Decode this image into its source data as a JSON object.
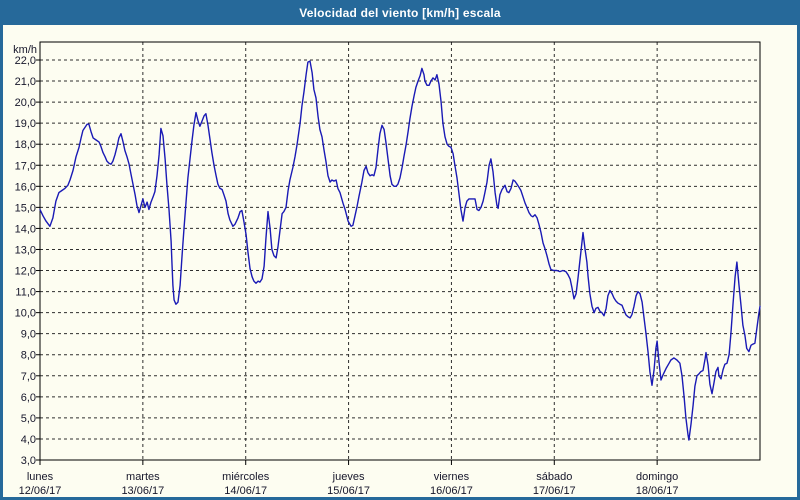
{
  "window": {
    "title": "Velocidad del viento [km/h] escala"
  },
  "colors": {
    "title_bar_bg": "#26699a",
    "title_text": "#ffffff",
    "frame": "#26699a",
    "page_bg": "#fdfdf1",
    "plot_border": "#000000",
    "grid": "#2e2e2e",
    "tick": "#000000",
    "axis_text": "#16162a",
    "line": "#1a1ab5"
  },
  "chart_data": {
    "type": "line",
    "title": "Velocidad del viento [km/h] escala",
    "ylabel": "km/h",
    "unit_label": "km/h",
    "ylim": [
      3,
      22
    ],
    "ytick_values": [
      3,
      4,
      5,
      6,
      7,
      8,
      9,
      10,
      11,
      12,
      13,
      14,
      15,
      16,
      17,
      18,
      19,
      20,
      21,
      22
    ],
    "ytick_labels": [
      "3,0",
      "4,0",
      "5,0",
      "6,0",
      "7,0",
      "8,0",
      "9,0",
      "10,0",
      "11,0",
      "12,0",
      "13,0",
      "14,0",
      "15,0",
      "16,0",
      "17,0",
      "18,0",
      "19,0",
      "20,0",
      "21,0",
      "22,0"
    ],
    "x_range_hours": [
      0,
      168
    ],
    "grid": "dashed",
    "legend": "none",
    "xticks": [
      {
        "hour": 0,
        "day": "lunes",
        "date": "12/06/17"
      },
      {
        "hour": 24,
        "day": "martes",
        "date": "13/06/17"
      },
      {
        "hour": 48,
        "day": "miércoles",
        "date": "14/06/17"
      },
      {
        "hour": 72,
        "day": "jueves",
        "date": "15/06/17"
      },
      {
        "hour": 96,
        "day": "viernes",
        "date": "16/06/17"
      },
      {
        "hour": 120,
        "day": "sábado",
        "date": "17/06/17"
      },
      {
        "hour": 144,
        "day": "domingo",
        "date": "18/06/17"
      }
    ],
    "series_name": "Velocidad del viento",
    "points_h_v": [
      [
        0,
        14.9
      ],
      [
        0.7,
        14.6
      ],
      [
        1.4,
        14.35
      ],
      [
        2.3,
        14.1
      ],
      [
        3,
        14.5
      ],
      [
        3.7,
        15.3
      ],
      [
        4.4,
        15.7
      ],
      [
        5.1,
        15.8
      ],
      [
        5.8,
        15.9
      ],
      [
        6.5,
        16.05
      ],
      [
        7,
        16.3
      ],
      [
        7.7,
        16.75
      ],
      [
        8.4,
        17.4
      ],
      [
        9.1,
        17.85
      ],
      [
        9.6,
        18.3
      ],
      [
        10,
        18.65
      ],
      [
        10.5,
        18.8
      ],
      [
        11,
        18.95
      ],
      [
        11.4,
        18.95
      ],
      [
        11.9,
        18.6
      ],
      [
        12.4,
        18.3
      ],
      [
        13.1,
        18.2
      ],
      [
        13.8,
        18.1
      ],
      [
        14.2,
        17.9
      ],
      [
        14.7,
        17.6
      ],
      [
        15.2,
        17.4
      ],
      [
        15.6,
        17.2
      ],
      [
        16.1,
        17.1
      ],
      [
        16.6,
        17.05
      ],
      [
        17,
        17.2
      ],
      [
        17.5,
        17.5
      ],
      [
        18,
        17.9
      ],
      [
        18.4,
        18.3
      ],
      [
        18.9,
        18.5
      ],
      [
        19.4,
        18.1
      ],
      [
        19.8,
        17.7
      ],
      [
        20.3,
        17.4
      ],
      [
        20.8,
        17.05
      ],
      [
        21.2,
        16.6
      ],
      [
        21.7,
        16.1
      ],
      [
        22.2,
        15.6
      ],
      [
        22.6,
        15.1
      ],
      [
        23.1,
        14.75
      ],
      [
        23.6,
        15.1
      ],
      [
        24,
        15.4
      ],
      [
        24.5,
        15
      ],
      [
        25,
        15.25
      ],
      [
        25.4,
        14.9
      ],
      [
        25.9,
        15.25
      ],
      [
        26.4,
        15.5
      ],
      [
        26.8,
        15.75
      ],
      [
        27.3,
        16.5
      ],
      [
        27.8,
        17.5
      ],
      [
        28.2,
        18.75
      ],
      [
        28.7,
        18.4
      ],
      [
        29.2,
        17.3
      ],
      [
        29.6,
        16.1
      ],
      [
        30.1,
        14.9
      ],
      [
        30.6,
        13.4
      ],
      [
        30.8,
        12.3
      ],
      [
        31,
        11.3
      ],
      [
        31.3,
        10.6
      ],
      [
        31.7,
        10.4
      ],
      [
        32.2,
        10.5
      ],
      [
        32.7,
        11.3
      ],
      [
        33.1,
        12.6
      ],
      [
        33.6,
        14
      ],
      [
        34.1,
        15.3
      ],
      [
        34.5,
        16.4
      ],
      [
        35,
        17.3
      ],
      [
        35.5,
        18.2
      ],
      [
        35.9,
        18.9
      ],
      [
        36.4,
        19.5
      ],
      [
        36.9,
        19.1
      ],
      [
        37.3,
        18.85
      ],
      [
        37.8,
        19.1
      ],
      [
        38.3,
        19.35
      ],
      [
        38.7,
        19.45
      ],
      [
        39.2,
        18.9
      ],
      [
        39.7,
        18.2
      ],
      [
        40.1,
        17.6
      ],
      [
        40.6,
        17
      ],
      [
        41.1,
        16.5
      ],
      [
        41.5,
        16.1
      ],
      [
        42,
        15.9
      ],
      [
        42.5,
        15.85
      ],
      [
        42.9,
        15.6
      ],
      [
        43.4,
        15.3
      ],
      [
        43.9,
        14.7
      ],
      [
        44.3,
        14.4
      ],
      [
        45,
        14.1
      ],
      [
        45.5,
        14.2
      ],
      [
        46.2,
        14.5
      ],
      [
        46.7,
        14.8
      ],
      [
        47.1,
        14.85
      ],
      [
        47.6,
        14.3
      ],
      [
        48.1,
        13.7
      ],
      [
        48.5,
        12.9
      ],
      [
        49,
        12.1
      ],
      [
        49.5,
        11.7
      ],
      [
        49.9,
        11.5
      ],
      [
        50.4,
        11.4
      ],
      [
        50.9,
        11.5
      ],
      [
        51.3,
        11.45
      ],
      [
        51.8,
        11.6
      ],
      [
        52.3,
        12.2
      ],
      [
        52.7,
        13.5
      ],
      [
        53.2,
        14.8
      ],
      [
        53.7,
        14
      ],
      [
        54.1,
        13
      ],
      [
        54.6,
        12.7
      ],
      [
        55.1,
        12.6
      ],
      [
        55.5,
        13.1
      ],
      [
        56,
        13.9
      ],
      [
        56.5,
        14.7
      ],
      [
        56.9,
        14.8
      ],
      [
        57.4,
        15
      ],
      [
        57.9,
        15.8
      ],
      [
        58.3,
        16.3
      ],
      [
        59,
        16.9
      ],
      [
        59.5,
        17.4
      ],
      [
        60,
        18
      ],
      [
        60.7,
        19
      ],
      [
        61.1,
        19.8
      ],
      [
        61.6,
        20.5
      ],
      [
        62.1,
        21.3
      ],
      [
        62.5,
        21.9
      ],
      [
        63,
        21.95
      ],
      [
        63.5,
        21.4
      ],
      [
        63.9,
        20.6
      ],
      [
        64.4,
        20.2
      ],
      [
        64.9,
        19.3
      ],
      [
        65.3,
        18.7
      ],
      [
        65.8,
        18.35
      ],
      [
        66.3,
        17.7
      ],
      [
        66.7,
        17.2
      ],
      [
        67.2,
        16.5
      ],
      [
        67.7,
        16.2
      ],
      [
        68.1,
        16.3
      ],
      [
        68.6,
        16.25
      ],
      [
        69.1,
        16.3
      ],
      [
        69.5,
        15.9
      ],
      [
        70,
        15.7
      ],
      [
        70.7,
        15.2
      ],
      [
        71.2,
        14.9
      ],
      [
        71.9,
        14.35
      ],
      [
        72.6,
        14.1
      ],
      [
        73,
        14.15
      ],
      [
        73.5,
        14.6
      ],
      [
        74,
        15.05
      ],
      [
        74.4,
        15.5
      ],
      [
        75.1,
        16.2
      ],
      [
        75.6,
        16.75
      ],
      [
        76.1,
        16.95
      ],
      [
        76.5,
        16.65
      ],
      [
        77,
        16.5
      ],
      [
        77.5,
        16.55
      ],
      [
        77.9,
        16.5
      ],
      [
        78.4,
        16.9
      ],
      [
        78.9,
        17.8
      ],
      [
        79.3,
        18.5
      ],
      [
        79.8,
        18.9
      ],
      [
        80.3,
        18.7
      ],
      [
        80.7,
        18.1
      ],
      [
        81.2,
        17.3
      ],
      [
        81.7,
        16.5
      ],
      [
        82.1,
        16.1
      ],
      [
        82.6,
        16
      ],
      [
        83.1,
        16
      ],
      [
        83.5,
        16.1
      ],
      [
        84,
        16.4
      ],
      [
        84.5,
        16.9
      ],
      [
        84.9,
        17.4
      ],
      [
        85.4,
        17.95
      ],
      [
        85.9,
        18.6
      ],
      [
        86.3,
        19.2
      ],
      [
        86.8,
        19.8
      ],
      [
        87.3,
        20.3
      ],
      [
        87.7,
        20.7
      ],
      [
        88.2,
        21
      ],
      [
        88.7,
        21.25
      ],
      [
        89.1,
        21.6
      ],
      [
        89.6,
        21.3
      ],
      [
        89.8,
        21
      ],
      [
        90.3,
        20.8
      ],
      [
        90.8,
        20.8
      ],
      [
        91.2,
        21
      ],
      [
        91.7,
        21.15
      ],
      [
        92.2,
        21.05
      ],
      [
        92.6,
        21.3
      ],
      [
        93.1,
        20.85
      ],
      [
        93.6,
        20
      ],
      [
        94,
        19
      ],
      [
        94.5,
        18.35
      ],
      [
        95,
        18
      ],
      [
        95.4,
        17.9
      ],
      [
        95.9,
        17.85
      ],
      [
        96.4,
        17.55
      ],
      [
        96.8,
        17
      ],
      [
        97.3,
        16.4
      ],
      [
        97.8,
        15.6
      ],
      [
        98.2,
        14.9
      ],
      [
        98.7,
        14.35
      ],
      [
        99.2,
        15
      ],
      [
        99.6,
        15.3
      ],
      [
        100.1,
        15.4
      ],
      [
        100.8,
        15.4
      ],
      [
        101.5,
        15.4
      ],
      [
        102,
        14.9
      ],
      [
        102.4,
        14.85
      ],
      [
        102.9,
        15
      ],
      [
        103.4,
        15.3
      ],
      [
        103.8,
        15.7
      ],
      [
        104.3,
        16.2
      ],
      [
        104.8,
        17
      ],
      [
        105.2,
        17.3
      ],
      [
        105.7,
        16.7
      ],
      [
        106.2,
        15.7
      ],
      [
        106.6,
        15.1
      ],
      [
        106.9,
        14.95
      ],
      [
        107.3,
        15.6
      ],
      [
        107.8,
        15.85
      ],
      [
        108.5,
        16.05
      ],
      [
        109,
        15.75
      ],
      [
        109.4,
        15.7
      ],
      [
        109.9,
        15.9
      ],
      [
        110.4,
        16.3
      ],
      [
        110.8,
        16.25
      ],
      [
        111.3,
        16.1
      ],
      [
        111.8,
        15.95
      ],
      [
        112.2,
        15.8
      ],
      [
        112.7,
        15.5
      ],
      [
        113.2,
        15.2
      ],
      [
        113.6,
        15
      ],
      [
        114.1,
        14.75
      ],
      [
        114.6,
        14.6
      ],
      [
        115,
        14.55
      ],
      [
        115.5,
        14.65
      ],
      [
        116,
        14.5
      ],
      [
        116.4,
        14.2
      ],
      [
        116.9,
        13.8
      ],
      [
        117.4,
        13.3
      ],
      [
        117.8,
        13.05
      ],
      [
        118.3,
        12.7
      ],
      [
        118.8,
        12.3
      ],
      [
        119.2,
        12.05
      ],
      [
        119.9,
        12
      ],
      [
        120.6,
        12
      ],
      [
        121.3,
        11.95
      ],
      [
        122,
        12
      ],
      [
        122.7,
        11.95
      ],
      [
        123.2,
        11.8
      ],
      [
        123.7,
        11.6
      ],
      [
        124.1,
        11.2
      ],
      [
        124.6,
        10.65
      ],
      [
        125.1,
        10.9
      ],
      [
        125.5,
        11.6
      ],
      [
        126,
        12.5
      ],
      [
        126.5,
        13.4
      ],
      [
        126.7,
        13.8
      ],
      [
        127.2,
        13
      ],
      [
        127.6,
        12.4
      ],
      [
        127.9,
        11.7
      ],
      [
        128.3,
        10.9
      ],
      [
        128.8,
        10.3
      ],
      [
        129.3,
        10
      ],
      [
        129.7,
        10.2
      ],
      [
        130.2,
        10.25
      ],
      [
        130.7,
        10.05
      ],
      [
        131.1,
        10
      ],
      [
        131.6,
        9.85
      ],
      [
        132.1,
        10.2
      ],
      [
        132.5,
        10.8
      ],
      [
        133,
        11.05
      ],
      [
        133.5,
        10.9
      ],
      [
        133.9,
        10.7
      ],
      [
        134.4,
        10.55
      ],
      [
        134.9,
        10.45
      ],
      [
        135.3,
        10.4
      ],
      [
        135.8,
        10.35
      ],
      [
        136.3,
        10.1
      ],
      [
        136.7,
        9.9
      ],
      [
        137.2,
        9.8
      ],
      [
        137.7,
        9.75
      ],
      [
        138.1,
        9.9
      ],
      [
        138.6,
        10.3
      ],
      [
        139.1,
        10.8
      ],
      [
        139.5,
        11
      ],
      [
        140,
        10.9
      ],
      [
        140.5,
        10.5
      ],
      [
        140.9,
        9.8
      ],
      [
        141.4,
        9
      ],
      [
        141.9,
        8.1
      ],
      [
        142.3,
        7.2
      ],
      [
        142.8,
        6.55
      ],
      [
        143.3,
        7.3
      ],
      [
        143.7,
        8.3
      ],
      [
        144,
        8.65
      ],
      [
        144.4,
        7.7
      ],
      [
        144.9,
        6.8
      ],
      [
        145.4,
        7.05
      ],
      [
        146.1,
        7.35
      ],
      [
        146.8,
        7.6
      ],
      [
        147.2,
        7.75
      ],
      [
        147.9,
        7.85
      ],
      [
        148.6,
        7.75
      ],
      [
        149.3,
        7.6
      ],
      [
        149.8,
        7
      ],
      [
        150.3,
        6
      ],
      [
        150.7,
        5
      ],
      [
        151.2,
        4.2
      ],
      [
        151.4,
        3.95
      ],
      [
        151.9,
        4.7
      ],
      [
        152.4,
        5.6
      ],
      [
        152.8,
        6.5
      ],
      [
        153.3,
        7
      ],
      [
        153.8,
        7.1
      ],
      [
        154.2,
        7.2
      ],
      [
        154.7,
        7.25
      ],
      [
        155.2,
        7.8
      ],
      [
        155.4,
        8.1
      ],
      [
        155.9,
        7.5
      ],
      [
        156.3,
        6.6
      ],
      [
        156.8,
        6.15
      ],
      [
        157.3,
        6.7
      ],
      [
        157.7,
        7.2
      ],
      [
        158.2,
        7.4
      ],
      [
        158.4,
        7
      ],
      [
        158.9,
        6.85
      ],
      [
        159.4,
        7.3
      ],
      [
        159.8,
        7.55
      ],
      [
        160.3,
        7.6
      ],
      [
        160.8,
        8
      ],
      [
        161.2,
        9
      ],
      [
        161.7,
        10.4
      ],
      [
        162.2,
        11.7
      ],
      [
        162.6,
        12.4
      ],
      [
        163.1,
        11.3
      ],
      [
        163.6,
        10.3
      ],
      [
        164,
        9.4
      ],
      [
        164.5,
        8.9
      ],
      [
        164.9,
        8.3
      ],
      [
        165.4,
        8.15
      ],
      [
        165.9,
        8.45
      ],
      [
        166.3,
        8.5
      ],
      [
        166.8,
        8.55
      ],
      [
        167.3,
        9.3
      ],
      [
        167.7,
        9.9
      ],
      [
        168,
        10.3
      ]
    ]
  }
}
